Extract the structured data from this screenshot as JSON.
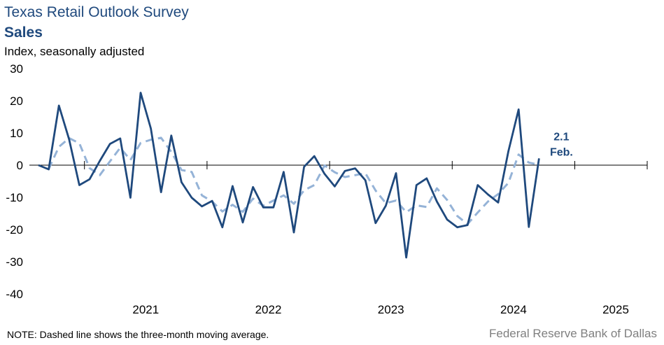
{
  "title": "Texas Retail Outlook Survey",
  "subtitle": "Sales",
  "ylabel": "Index, seasonally adjusted",
  "note": "NOTE: Dashed line shows the three-month  moving average.",
  "source": "Federal Reserve Bank of Dallas",
  "colors": {
    "index_line": "#1f497d",
    "moving_average": "#95b3d7",
    "axis": "#000000"
  },
  "chart_data": {
    "type": "line",
    "title": "Texas Retail Outlook Survey",
    "subtitle": "Sales",
    "ylabel": "Index, seasonally adjusted",
    "xlabel": "",
    "ylim": [
      -40,
      30
    ],
    "yticks": [
      30,
      20,
      10,
      0,
      -10,
      -20,
      -30,
      -40
    ],
    "xtick_labels": [
      "2021",
      "2022",
      "2023",
      "2024",
      "2025"
    ],
    "x_start": "2020-08",
    "grid": false,
    "series": [
      {
        "name": "Index",
        "style": "solid",
        "values": [
          0,
          -1.3,
          18.5,
          8.0,
          -6.2,
          -4.4,
          1.3,
          6.6,
          8.3,
          -10.1,
          22.5,
          11.4,
          -8.4,
          9.2,
          -5.3,
          -10.1,
          -12.8,
          -11.1,
          -19.3,
          -6.5,
          -17.8,
          -6.8,
          -13.1,
          -13.1,
          -2.1,
          -20.9,
          -0.5,
          2.8,
          -2.7,
          -6.6,
          -1.8,
          -1.0,
          -4.7,
          -18.0,
          -12.6,
          -2.5,
          -28.7,
          -6.2,
          -4.1,
          -11.3,
          -16.9,
          -19.3,
          -18.6,
          -6.2,
          -9.1,
          -11.6,
          4.3,
          17.3,
          -19.2,
          2.1
        ]
      },
      {
        "name": "Three-month moving average",
        "style": "dashed",
        "values": [
          null,
          -1.2,
          5.7,
          8.4,
          6.8,
          -0.9,
          -3.1,
          1.2,
          5.4,
          1.6,
          6.9,
          7.9,
          8.5,
          4.1,
          -1.5,
          -2.1,
          -9.4,
          -11.3,
          -14.4,
          -12.3,
          -14.5,
          -10.4,
          -12.6,
          -11.0,
          -9.4,
          -12.0,
          -7.8,
          -6.2,
          -0.1,
          -2.2,
          -3.7,
          -3.1,
          -2.5,
          -7.9,
          -11.8,
          -11.0,
          -14.6,
          -12.5,
          -13.0,
          -7.2,
          -10.8,
          -15.8,
          -18.3,
          -14.7,
          -11.3,
          -9.0,
          -5.5,
          3.3,
          0.8,
          0.1
        ]
      }
    ],
    "annotation": {
      "value": "2.1",
      "label": "Feb."
    }
  }
}
